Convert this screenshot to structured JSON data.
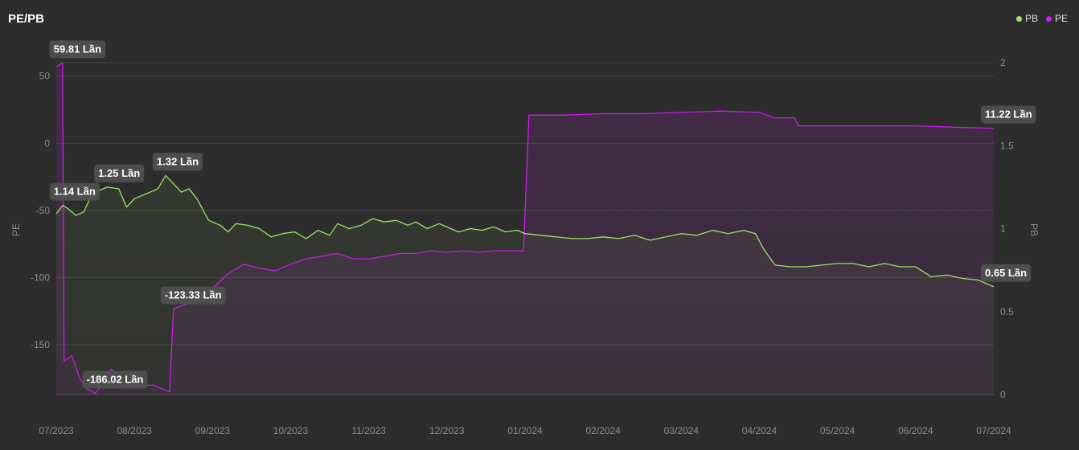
{
  "header": {
    "title": "PE/PB"
  },
  "legend": [
    {
      "name": "PB",
      "color": "#9be564"
    },
    {
      "name": "PE",
      "color": "#c81ee8"
    }
  ],
  "chart_data": {
    "type": "line",
    "title": "PE/PB",
    "x_ticks": [
      "07/2023",
      "08/2023",
      "09/2023",
      "10/2023",
      "11/2023",
      "12/2023",
      "01/2024",
      "02/2024",
      "03/2024",
      "04/2024",
      "05/2024",
      "06/2024",
      "07/2024"
    ],
    "y_left": {
      "label": "PE",
      "ticks": [
        50,
        0,
        -50,
        -100,
        -150
      ],
      "range": [
        -187,
        60
      ]
    },
    "y_right": {
      "label": "PB",
      "ticks": [
        2,
        1.5,
        1,
        0.5,
        0
      ],
      "range": [
        0,
        2
      ]
    },
    "legend_position": "top-right",
    "grid": true,
    "series": [
      {
        "name": "PE",
        "axis": "left",
        "color": "#c81ee8",
        "points": [
          [
            0,
            57
          ],
          [
            0.08,
            59.81
          ],
          [
            0.1,
            -162
          ],
          [
            0.2,
            -158
          ],
          [
            0.3,
            -175
          ],
          [
            0.4,
            -183
          ],
          [
            0.5,
            -186.02
          ],
          [
            0.6,
            -178
          ],
          [
            0.7,
            -168
          ],
          [
            0.8,
            -172
          ],
          [
            0.85,
            -180
          ],
          [
            1.0,
            -180
          ],
          [
            1.25,
            -180
          ],
          [
            1.45,
            -185
          ],
          [
            1.5,
            -123.33
          ],
          [
            1.6,
            -121
          ],
          [
            1.8,
            -117
          ],
          [
            2.0,
            -108
          ],
          [
            2.2,
            -97
          ],
          [
            2.4,
            -90
          ],
          [
            2.6,
            -93
          ],
          [
            2.8,
            -95
          ],
          [
            3.0,
            -90
          ],
          [
            3.2,
            -86
          ],
          [
            3.4,
            -84
          ],
          [
            3.6,
            -82
          ],
          [
            3.8,
            -86
          ],
          [
            4.0,
            -86
          ],
          [
            4.2,
            -84
          ],
          [
            4.4,
            -82
          ],
          [
            4.6,
            -82
          ],
          [
            4.8,
            -80
          ],
          [
            5.0,
            -81
          ],
          [
            5.2,
            -80
          ],
          [
            5.4,
            -81
          ],
          [
            5.6,
            -80
          ],
          [
            5.98,
            -80
          ],
          [
            6.05,
            21
          ],
          [
            6.5,
            21
          ],
          [
            7.0,
            22
          ],
          [
            7.5,
            22
          ],
          [
            8.0,
            23
          ],
          [
            8.5,
            24
          ],
          [
            9.0,
            23
          ],
          [
            9.2,
            19
          ],
          [
            9.45,
            19
          ],
          [
            9.5,
            13
          ],
          [
            10.0,
            13
          ],
          [
            10.5,
            13
          ],
          [
            11.0,
            13
          ],
          [
            11.5,
            12
          ],
          [
            12.0,
            11.22
          ]
        ]
      },
      {
        "name": "PB",
        "axis": "right",
        "color": "#9be564",
        "points": [
          [
            0,
            1.09
          ],
          [
            0.08,
            1.14
          ],
          [
            0.15,
            1.12
          ],
          [
            0.25,
            1.08
          ],
          [
            0.35,
            1.1
          ],
          [
            0.45,
            1.2
          ],
          [
            0.55,
            1.23
          ],
          [
            0.65,
            1.25
          ],
          [
            0.8,
            1.24
          ],
          [
            0.9,
            1.13
          ],
          [
            1.0,
            1.18
          ],
          [
            1.1,
            1.2
          ],
          [
            1.2,
            1.22
          ],
          [
            1.3,
            1.24
          ],
          [
            1.4,
            1.32
          ],
          [
            1.5,
            1.27
          ],
          [
            1.6,
            1.22
          ],
          [
            1.7,
            1.24
          ],
          [
            1.8,
            1.18
          ],
          [
            1.95,
            1.05
          ],
          [
            2.1,
            1.02
          ],
          [
            2.2,
            0.98
          ],
          [
            2.3,
            1.03
          ],
          [
            2.45,
            1.02
          ],
          [
            2.6,
            1.0
          ],
          [
            2.75,
            0.95
          ],
          [
            2.9,
            0.97
          ],
          [
            3.05,
            0.98
          ],
          [
            3.2,
            0.94
          ],
          [
            3.35,
            0.99
          ],
          [
            3.5,
            0.96
          ],
          [
            3.6,
            1.03
          ],
          [
            3.75,
            1.0
          ],
          [
            3.9,
            1.02
          ],
          [
            4.05,
            1.06
          ],
          [
            4.2,
            1.04
          ],
          [
            4.35,
            1.05
          ],
          [
            4.5,
            1.02
          ],
          [
            4.6,
            1.04
          ],
          [
            4.75,
            1.0
          ],
          [
            4.9,
            1.03
          ],
          [
            5.0,
            1.01
          ],
          [
            5.15,
            0.98
          ],
          [
            5.3,
            1.0
          ],
          [
            5.45,
            0.99
          ],
          [
            5.6,
            1.01
          ],
          [
            5.75,
            0.98
          ],
          [
            5.9,
            0.99
          ],
          [
            6.0,
            0.97
          ],
          [
            6.2,
            0.96
          ],
          [
            6.4,
            0.95
          ],
          [
            6.6,
            0.94
          ],
          [
            6.8,
            0.94
          ],
          [
            7.0,
            0.95
          ],
          [
            7.2,
            0.94
          ],
          [
            7.4,
            0.96
          ],
          [
            7.6,
            0.93
          ],
          [
            7.8,
            0.95
          ],
          [
            8.0,
            0.97
          ],
          [
            8.2,
            0.96
          ],
          [
            8.4,
            0.99
          ],
          [
            8.6,
            0.97
          ],
          [
            8.8,
            0.99
          ],
          [
            8.95,
            0.97
          ],
          [
            9.05,
            0.88
          ],
          [
            9.2,
            0.78
          ],
          [
            9.4,
            0.77
          ],
          [
            9.6,
            0.77
          ],
          [
            9.8,
            0.78
          ],
          [
            10.0,
            0.79
          ],
          [
            10.2,
            0.79
          ],
          [
            10.4,
            0.77
          ],
          [
            10.6,
            0.79
          ],
          [
            10.8,
            0.77
          ],
          [
            11.0,
            0.77
          ],
          [
            11.2,
            0.71
          ],
          [
            11.4,
            0.72
          ],
          [
            11.6,
            0.7
          ],
          [
            11.8,
            0.69
          ],
          [
            12.0,
            0.65
          ]
        ]
      }
    ],
    "annotations": [
      {
        "text": "59.81 Lần",
        "series": "PE",
        "x": 0.08,
        "y": 59.81
      },
      {
        "text": "-186.02 Lần",
        "series": "PE",
        "x": 0.5,
        "y": -186.02
      },
      {
        "text": "-123.33 Lần",
        "series": "PE",
        "x": 1.5,
        "y": -123.33
      },
      {
        "text": "11.22 Lần",
        "series": "PE",
        "x": 12.0,
        "y": 11.22
      },
      {
        "text": "1.14 Lần",
        "series": "PB",
        "x": 0.08,
        "y": 1.14
      },
      {
        "text": "1.25 Lần",
        "series": "PB",
        "x": 0.65,
        "y": 1.25
      },
      {
        "text": "1.32 Lần",
        "series": "PB",
        "x": 1.4,
        "y": 1.32
      },
      {
        "text": "0.65 Lần",
        "series": "PB",
        "x": 12.0,
        "y": 0.65
      }
    ]
  }
}
